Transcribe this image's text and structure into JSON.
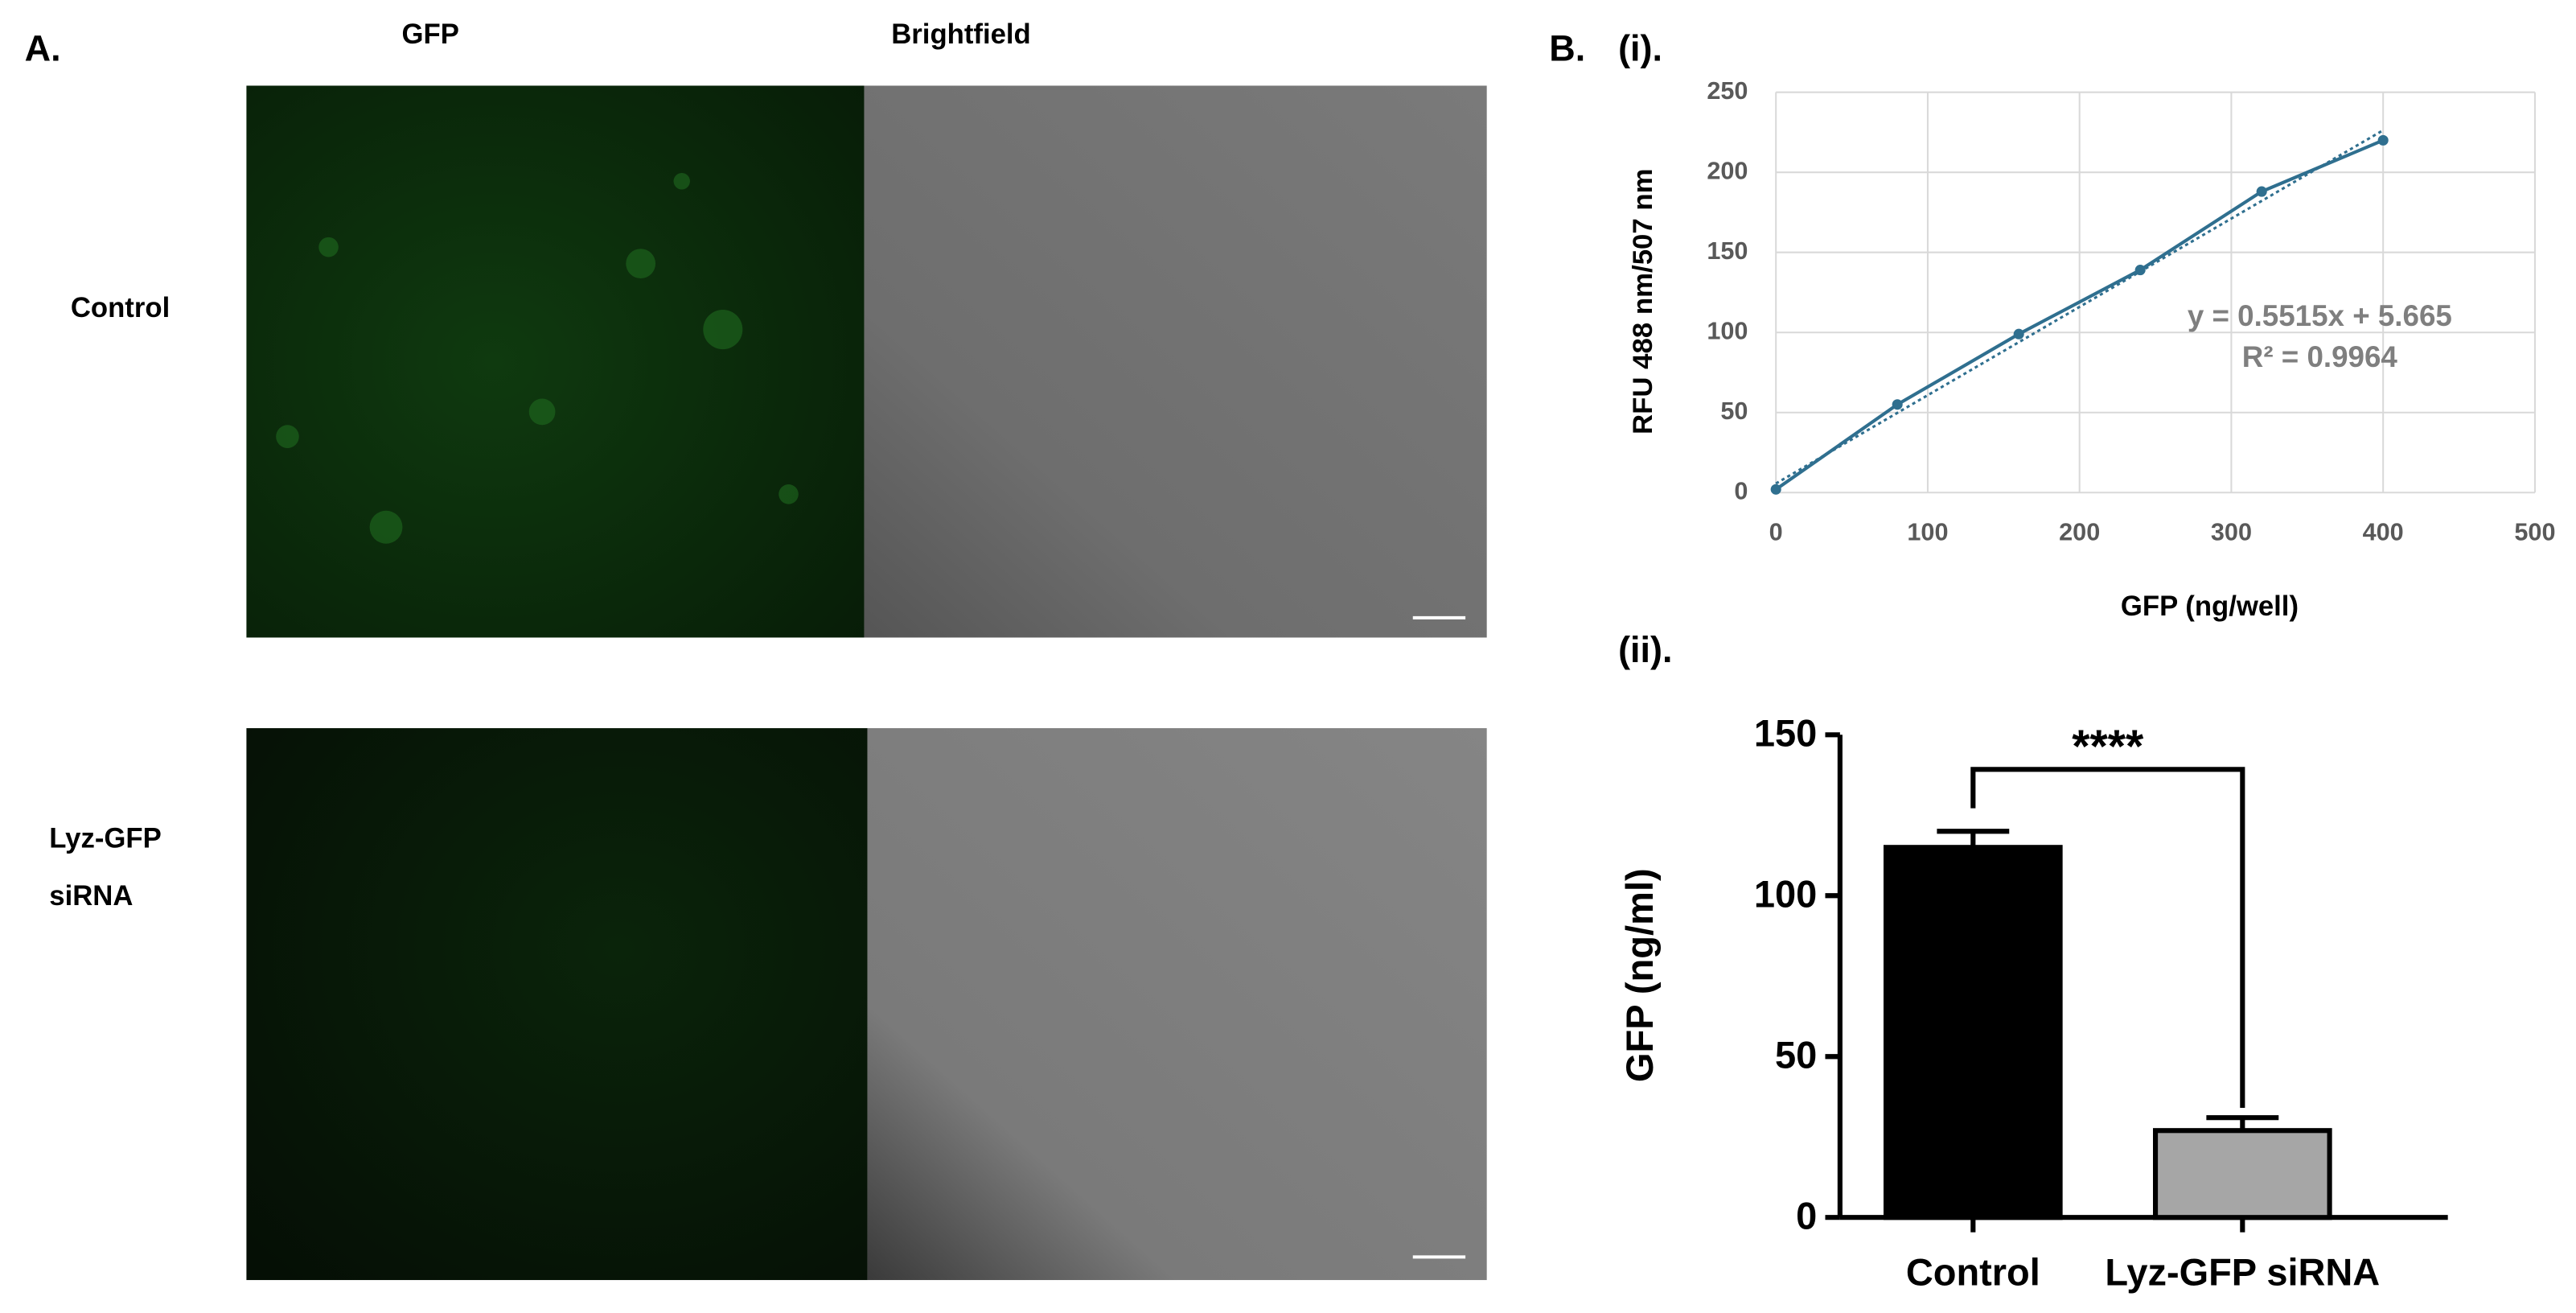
{
  "panel_a": {
    "label": "A.",
    "columns": [
      "GFP",
      "Brightfield"
    ],
    "rows": [
      {
        "label_lines": [
          "Control"
        ]
      },
      {
        "label_lines": [
          "Lyz-GFP",
          "siRNA"
        ]
      }
    ]
  },
  "panel_b_label": "B.",
  "chart_data": [
    {
      "type": "line",
      "panel_label": "(i).",
      "x_label": "GFP (ng/well)",
      "y_label": "RFU 488 nm/507 nm",
      "x": [
        0,
        80,
        160,
        240,
        320,
        400
      ],
      "values": [
        2,
        55,
        99,
        139,
        188,
        220
      ],
      "color": "#2f6f8f",
      "markers": true,
      "xlim": [
        0,
        500
      ],
      "xticks": [
        0,
        100,
        200,
        300,
        400,
        500
      ],
      "ylim": [
        0,
        250
      ],
      "yticks": [
        0,
        50,
        100,
        150,
        200,
        250
      ],
      "grid": true,
      "trendline": {
        "slope": 0.5515,
        "intercept": 5.665,
        "style": "dotted"
      },
      "annotations": [
        "y = 0.5515x + 5.665",
        "R² = 0.9964"
      ]
    },
    {
      "type": "bar",
      "panel_label": "(ii).",
      "y_label": "GFP (ng/ml)",
      "categories": [
        "Control",
        "Lyz-GFP siRNA"
      ],
      "values": [
        115,
        27
      ],
      "errors": [
        5,
        4
      ],
      "colors": [
        "#000000",
        "#a6a6a6"
      ],
      "ylim": [
        0,
        150
      ],
      "yticks": [
        0,
        50,
        100,
        150
      ],
      "significance": "****"
    }
  ]
}
